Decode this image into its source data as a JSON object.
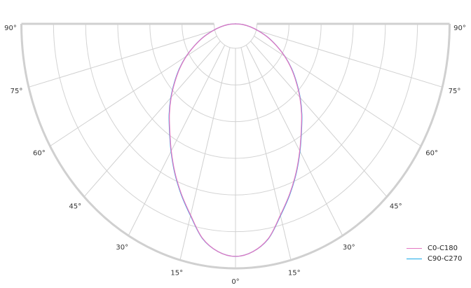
{
  "chart_data": {
    "type": "polar",
    "title": "",
    "angle_unit": "degrees",
    "angle_ticks": [
      {
        "angle": -90,
        "label": "90°"
      },
      {
        "angle": -75,
        "label": "75°"
      },
      {
        "angle": -60,
        "label": "60°"
      },
      {
        "angle": -45,
        "label": "45°"
      },
      {
        "angle": -30,
        "label": "30°"
      },
      {
        "angle": -15,
        "label": "15°"
      },
      {
        "angle": 0,
        "label": "0°"
      },
      {
        "angle": 15,
        "label": "15°"
      },
      {
        "angle": 30,
        "label": "30°"
      },
      {
        "angle": 45,
        "label": "45°"
      },
      {
        "angle": 60,
        "label": "60°"
      },
      {
        "angle": 75,
        "label": "75°"
      },
      {
        "angle": 90,
        "label": "90°"
      }
    ],
    "radial_range": [
      0,
      1
    ],
    "radial_grid": [
      0.1,
      0.25,
      0.4,
      0.55,
      0.7,
      0.85,
      1.0
    ],
    "radial_tick_labels": false,
    "grid": true,
    "legend_position": "bottom-right",
    "angles": [
      0,
      5,
      10,
      15,
      20,
      25,
      30,
      35,
      40,
      45,
      50,
      55,
      60,
      65,
      70,
      75,
      80,
      85,
      90
    ],
    "series": [
      {
        "name": "C0-C180",
        "color": "#e377c2",
        "values": [
          0.951,
          0.935,
          0.89,
          0.81,
          0.74,
          0.67,
          0.6,
          0.535,
          0.48,
          0.425,
          0.37,
          0.318,
          0.265,
          0.21,
          0.16,
          0.11,
          0.07,
          0.035,
          0.0
        ]
      },
      {
        "name": "C90-C270",
        "color": "#17a9e8",
        "values": [
          0.951,
          0.935,
          0.891,
          0.812,
          0.742,
          0.672,
          0.602,
          0.537,
          0.482,
          0.427,
          0.372,
          0.32,
          0.266,
          0.211,
          0.161,
          0.111,
          0.07,
          0.035,
          0.0
        ]
      }
    ]
  }
}
